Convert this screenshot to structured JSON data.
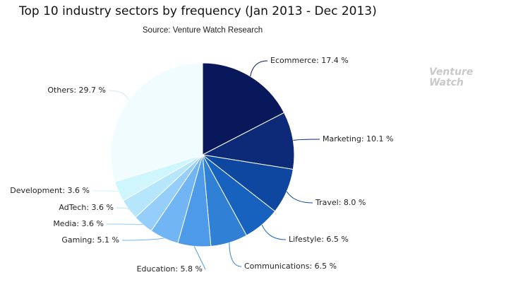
{
  "chart_data": {
    "type": "pie",
    "title": "Top 10 industry sectors by frequency (Jan 2013 - Dec 2013)",
    "subtitle": "Source: Venture Watch Research",
    "values": [
      17.4,
      10.1,
      8.0,
      6.5,
      6.5,
      5.8,
      5.1,
      3.6,
      3.6,
      3.6,
      29.7
    ],
    "value_labels": [
      "Ecommerce: 17.4 %",
      "Marketing: 10.1 %",
      "Travel: 8.0 %",
      "Lifestyle: 6.5 %",
      "Communications: 6.5 %",
      "Education: 5.8 %",
      "Gaming: 5.1 %",
      "Media: 3.6 %",
      "AdTech: 3.6 %",
      "Development: 3.6 %",
      "Others: 29.7 %"
    ],
    "colors": [
      "#08185a",
      "#0c2a78",
      "#0d479f",
      "#1762be",
      "#3080d6",
      "#4d9ae8",
      "#72b5f4",
      "#95cefa",
      "#b5e6fc",
      "#cff6fd",
      "#f0fcff"
    ]
  },
  "logo": {
    "lines": [
      "Venture",
      "Watch"
    ]
  }
}
